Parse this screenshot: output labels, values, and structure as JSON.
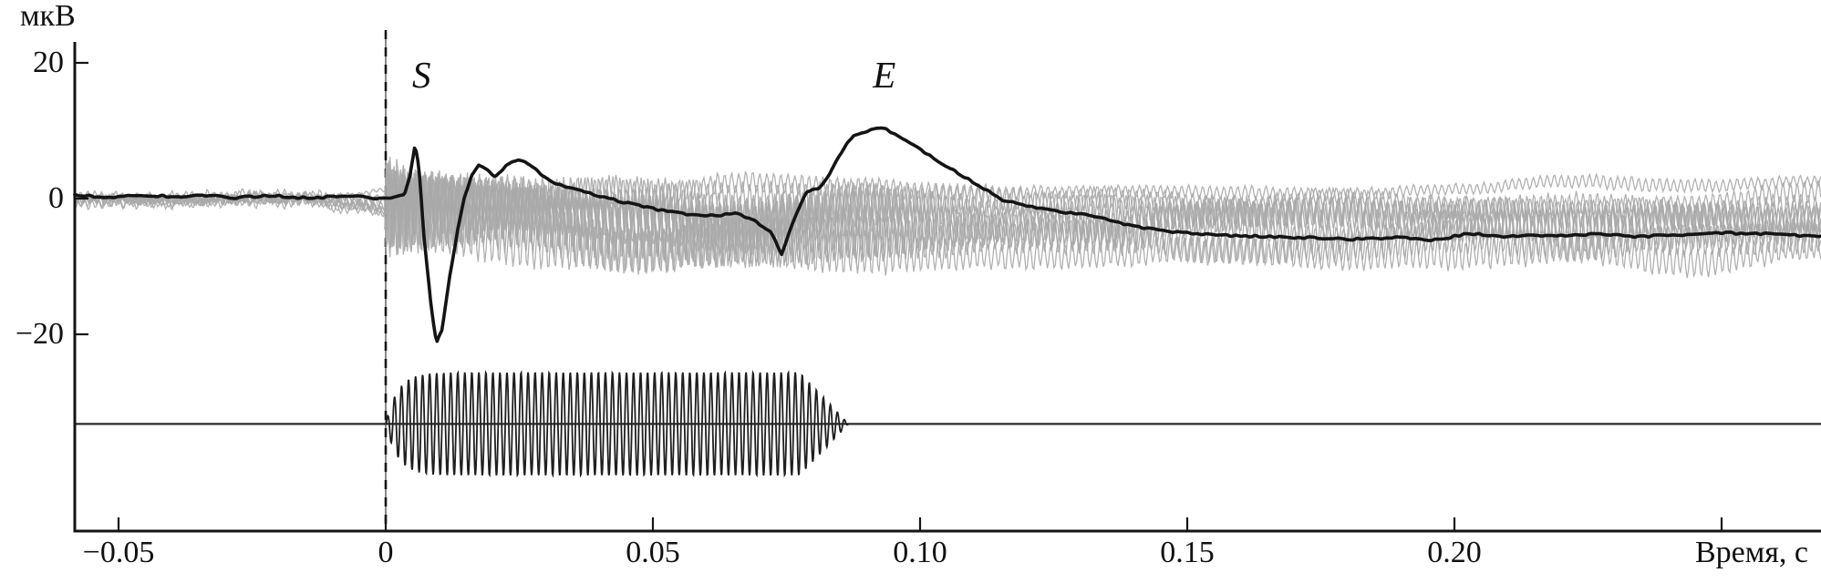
{
  "page": {
    "background": "#ffffff"
  },
  "chart_data": {
    "type": "line",
    "title": "",
    "ylabel": "мкВ",
    "xlabel": "Время, с",
    "grid": false,
    "legend": null,
    "xlim_s": [
      -0.0582,
      0.2686
    ],
    "ylim_uV": [
      -49,
      24.5
    ],
    "x_ticks": [
      {
        "t": -0.05,
        "label": "−0.05"
      },
      {
        "t": 0.0,
        "label": "0"
      },
      {
        "t": 0.05,
        "label": "0.05"
      },
      {
        "t": 0.1,
        "label": "0.10"
      },
      {
        "t": 0.15,
        "label": "0.15"
      },
      {
        "t": 0.2,
        "label": "0.20"
      },
      {
        "t": 0.25,
        "label": ""
      }
    ],
    "y_ticks": [
      {
        "v": 20,
        "label": "20"
      },
      {
        "v": 0,
        "label": "0"
      },
      {
        "v": -20,
        "label": "−20"
      }
    ],
    "annotations": [
      {
        "text": "S",
        "t": 0.0067,
        "v_uV": 18.1
      },
      {
        "text": "E",
        "t": 0.0933,
        "v_uV": 18.1
      }
    ],
    "series": [
      {
        "name": "average_evoked_response",
        "color": "#141414",
        "keypoints_t_uV": [
          [
            -0.0582,
            0.2
          ],
          [
            -0.052,
            0.0
          ],
          [
            -0.046,
            0.4
          ],
          [
            -0.04,
            0.1
          ],
          [
            -0.034,
            0.4
          ],
          [
            -0.028,
            0.1
          ],
          [
            -0.022,
            0.5
          ],
          [
            -0.016,
            0.2
          ],
          [
            -0.01,
            0.0
          ],
          [
            -0.005,
            0.3
          ],
          [
            -0.002,
            0.0
          ],
          [
            0.0,
            0.1
          ],
          [
            0.0035,
            0.5
          ],
          [
            0.0045,
            3.2
          ],
          [
            0.0055,
            7.8
          ],
          [
            0.0062,
            4.5
          ],
          [
            0.0072,
            -6.0
          ],
          [
            0.0085,
            -16.0
          ],
          [
            0.0095,
            -21.3
          ],
          [
            0.0105,
            -19.5
          ],
          [
            0.012,
            -11.5
          ],
          [
            0.0135,
            -4.5
          ],
          [
            0.0148,
            0.3
          ],
          [
            0.016,
            3.3
          ],
          [
            0.0174,
            4.8
          ],
          [
            0.019,
            4.1
          ],
          [
            0.0205,
            3.2
          ],
          [
            0.0225,
            4.7
          ],
          [
            0.0248,
            5.5
          ],
          [
            0.0262,
            5.3
          ],
          [
            0.0275,
            4.6
          ],
          [
            0.03,
            3.0
          ],
          [
            0.033,
            2.0
          ],
          [
            0.0365,
            1.3
          ],
          [
            0.04,
            0.2
          ],
          [
            0.0433,
            -0.5
          ],
          [
            0.0465,
            -0.8
          ],
          [
            0.049,
            -1.0
          ],
          [
            0.0515,
            -1.5
          ],
          [
            0.054,
            -1.9
          ],
          [
            0.0565,
            -2.2
          ],
          [
            0.0597,
            -2.5
          ],
          [
            0.0625,
            -2.6
          ],
          [
            0.0655,
            -2.3
          ],
          [
            0.0695,
            -3.6
          ],
          [
            0.072,
            -4.8
          ],
          [
            0.0741,
            -7.9
          ],
          [
            0.0763,
            -3.0
          ],
          [
            0.0788,
            1.1
          ],
          [
            0.081,
            1.4
          ],
          [
            0.0832,
            3.8
          ],
          [
            0.0855,
            7.0
          ],
          [
            0.0875,
            9.4
          ],
          [
            0.09,
            10.0
          ],
          [
            0.0928,
            10.6
          ],
          [
            0.095,
            9.6
          ],
          [
            0.0968,
            8.5
          ],
          [
            0.101,
            6.4
          ],
          [
            0.1058,
            4.4
          ],
          [
            0.111,
            2.0
          ],
          [
            0.1155,
            -0.3
          ],
          [
            0.119,
            -0.9
          ],
          [
            0.1263,
            -2.0
          ],
          [
            0.1321,
            -2.7
          ],
          [
            0.1394,
            -3.9
          ],
          [
            0.1451,
            -4.6
          ],
          [
            0.1526,
            -5.0
          ],
          [
            0.16,
            -5.3
          ],
          [
            0.17,
            -5.6
          ],
          [
            0.18,
            -6.0
          ],
          [
            0.19,
            -5.8
          ],
          [
            0.196,
            -6.1
          ],
          [
            0.2026,
            -5.0
          ],
          [
            0.21,
            -5.4
          ],
          [
            0.218,
            -5.7
          ],
          [
            0.226,
            -5.3
          ],
          [
            0.234,
            -5.6
          ],
          [
            0.242,
            -5.2
          ],
          [
            0.2486,
            -5.1
          ],
          [
            0.256,
            -5.4
          ],
          [
            0.262,
            -5.2
          ],
          [
            0.2686,
            -5.4
          ]
        ]
      }
    ],
    "single_trials": {
      "name": "individual_trial_traces",
      "count": 9,
      "color": "#a9a9a9",
      "pre_stimulus_spread_uV": 2.0,
      "final_offsets_uV": [
        1.2,
        -0.3,
        -1.2,
        -2.2,
        -3.0,
        -3.8,
        -4.8,
        -6.2,
        -8.0
      ],
      "ripple_freq_hz": 760,
      "ripple_scale": [
        0.45,
        0.7,
        0.9,
        1.0,
        1.1,
        1.2,
        1.15,
        1.05,
        0.95
      ],
      "ripple_amp_during_burst_uV": 3.3,
      "ripple_amp_after_uV": 1.9
    },
    "stimulus": {
      "name": "tone_burst",
      "color": "#1f1f1f",
      "freq_hz": 760,
      "start_s": 0.0,
      "plateau_end_s": 0.0775,
      "end_s": 0.0866,
      "amplitude_uV": 7.6,
      "baseline_uV": -33.2,
      "rise_tau_s": 0.0022
    },
    "onset_marker": {
      "t": 0.0,
      "style": "dashed"
    },
    "stimulus_zero_line_uV": -33.2,
    "colors": {
      "average": "#141414",
      "trials": "#a9a9a9",
      "stimulus": "#1f1f1f",
      "axis": "#141414"
    }
  }
}
